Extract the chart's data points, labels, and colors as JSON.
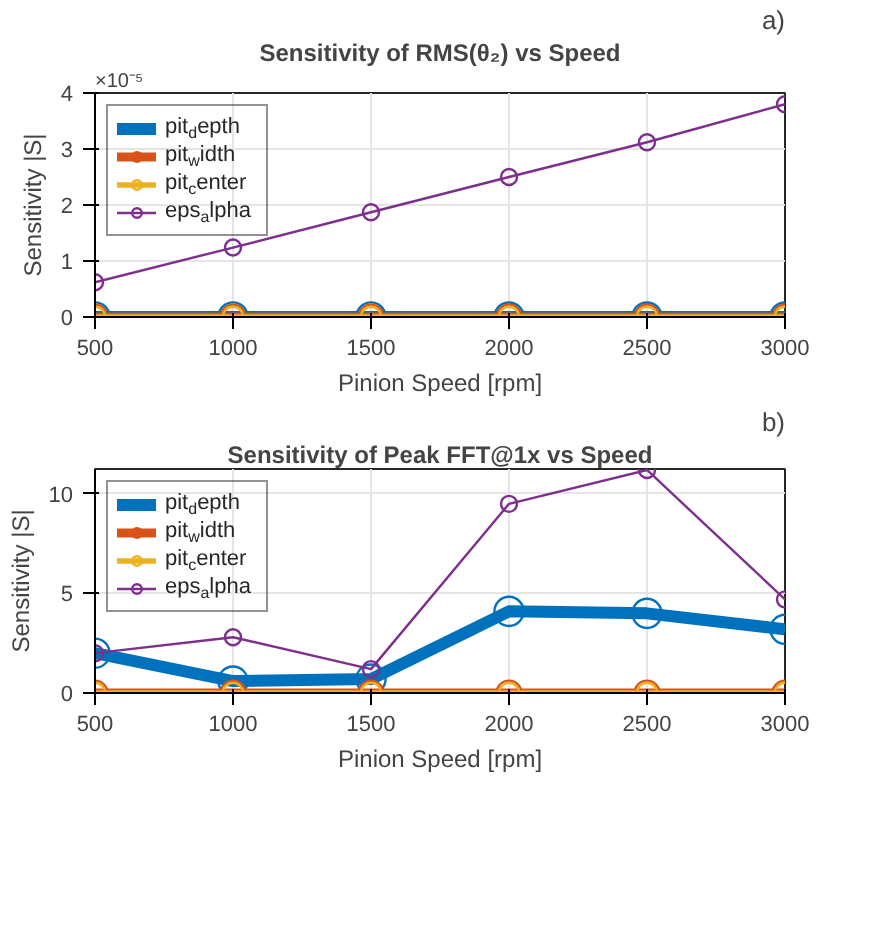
{
  "chart_data": [
    {
      "type": "line",
      "title": "Sensitivity of RMS(θ₂) vs Speed",
      "xlabel": "Pinion Speed [rpm]",
      "ylabel": "Sensitivity |S|",
      "annotations": [
        "a)",
        "×10⁻⁵"
      ],
      "x": [
        500,
        1000,
        1500,
        2000,
        2500,
        3000
      ],
      "xlim": [
        500,
        3000
      ],
      "xticks": [
        500,
        1000,
        1500,
        2000,
        2500,
        3000
      ],
      "ylim": [
        0,
        4
      ],
      "yticks": [
        0,
        1,
        2,
        3,
        4
      ],
      "grid": true,
      "legend": "top left",
      "marker": "circle",
      "line_style": "solid",
      "series": [
        {
          "name": "pit$_{d}$epth",
          "color": "#0072bd",
          "values": [
            0,
            0,
            0,
            0,
            0,
            0
          ]
        },
        {
          "name": "pit$_{w}$idth",
          "color": "#d95319",
          "values": [
            0,
            0,
            0,
            0,
            0,
            0
          ]
        },
        {
          "name": "pit$_{c}$enter",
          "color": "#edb120",
          "values": [
            0,
            0,
            0,
            0,
            0,
            0
          ]
        },
        {
          "name": "eps$_{a}$lpha",
          "color": "#7e2f8e",
          "values": [
            0.62,
            1.24,
            1.87,
            2.5,
            3.12,
            3.8
          ]
        }
      ]
    },
    {
      "type": "line",
      "title": "Sensitivity of Peak FFT@1x vs Speed",
      "xlabel": "Pinion Speed [rpm]",
      "ylabel": "Sensitivity |S|",
      "annotations": [
        "b)"
      ],
      "x": [
        500,
        1000,
        1500,
        2000,
        2500,
        3000
      ],
      "xlim": [
        500,
        3000
      ],
      "xticks": [
        500,
        1000,
        1500,
        2000,
        2500,
        3000
      ],
      "ylim": [
        0,
        11.25
      ],
      "yticks": [
        0,
        5,
        10
      ],
      "grid": true,
      "legend": "top left",
      "marker": "circle",
      "line_style": "solid",
      "series": [
        {
          "name": "pit$_{d}$epth",
          "color": "#0072bd",
          "values": [
            2.0,
            0.6,
            0.7,
            4.1,
            4.0,
            3.2
          ]
        },
        {
          "name": "pit$_{w}$idth",
          "color": "#d95319",
          "values": [
            0,
            0,
            0,
            0,
            0,
            0
          ]
        },
        {
          "name": "pit$_{c}$enter",
          "color": "#edb120",
          "values": [
            0,
            0,
            0,
            0,
            0,
            0
          ]
        },
        {
          "name": "eps$_{a}$lpha",
          "color": "#7e2f8e",
          "values": [
            2.0,
            2.8,
            1.2,
            9.5,
            11.2,
            4.7
          ]
        }
      ]
    }
  ]
}
